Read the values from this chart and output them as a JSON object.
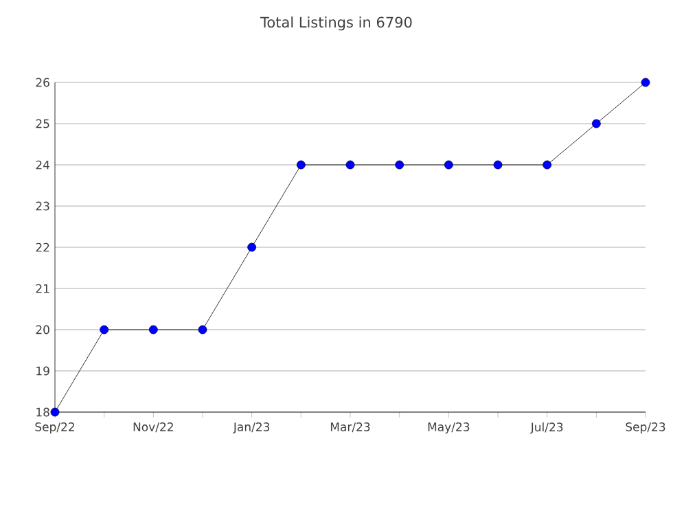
{
  "chart_data": {
    "type": "line",
    "title": "Total Listings in 6790",
    "categories": [
      "Sep/22",
      null,
      "Nov/22",
      null,
      "Jan/23",
      null,
      "Mar/23",
      null,
      "May/23",
      null,
      "Jul/23",
      null,
      "Sep/23"
    ],
    "series": [
      {
        "color": "#0000ff",
        "values": [
          18,
          20,
          20,
          20,
          22,
          24,
          24,
          24,
          24,
          24,
          24,
          25,
          26
        ]
      }
    ],
    "ylim": [
      18,
      26
    ],
    "yticks": [
      18,
      19,
      20,
      21,
      22,
      23,
      24,
      25,
      26
    ],
    "grid": "y",
    "marker": "circle",
    "line_style": "solid"
  }
}
